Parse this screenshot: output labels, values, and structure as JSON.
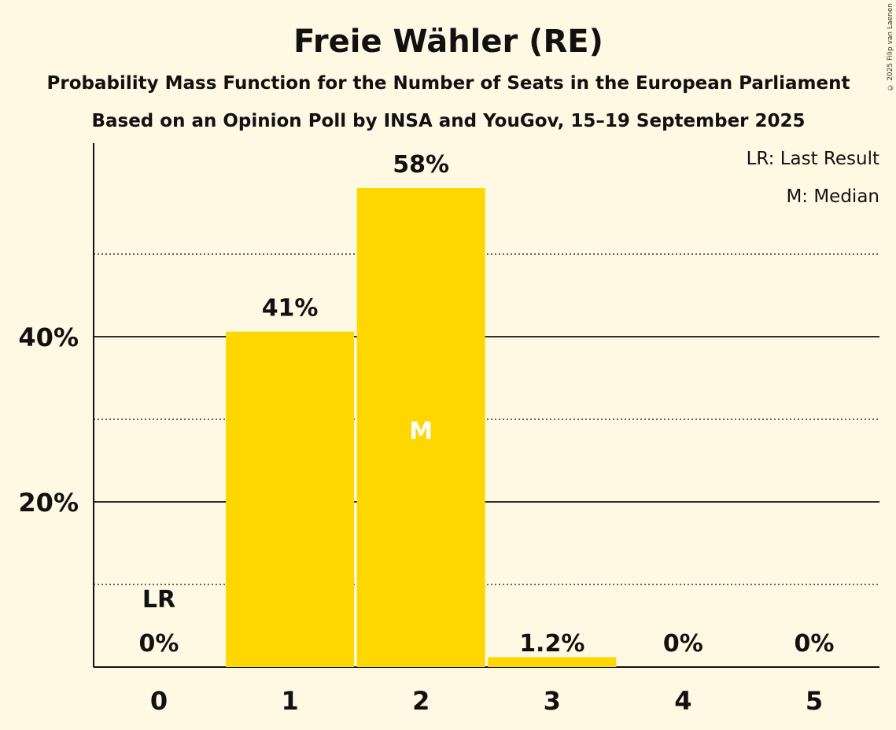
{
  "chart_data": {
    "type": "bar",
    "title": "Freie Wähler (RE)",
    "subtitle": "Probability Mass Function for the Number of Seats in the European Parliament",
    "subtitle2": "Based on an Opinion Poll by INSA and YouGov, 15–19 September 2025",
    "categories": [
      "0",
      "1",
      "2",
      "3",
      "4",
      "5"
    ],
    "values": [
      0,
      40.6,
      58,
      1.2,
      0,
      0
    ],
    "data_labels": [
      "0%",
      "41%",
      "58%",
      "1.2%",
      "0%",
      "0%"
    ],
    "ylim": [
      0,
      63
    ],
    "yticks": [
      {
        "value": 20,
        "label": "20%"
      },
      {
        "value": 40,
        "label": "40%"
      }
    ],
    "minor_gridlines": [
      10,
      30,
      50
    ],
    "last_result_index": 0,
    "last_result_marker": "LR",
    "median_index": 2,
    "median_marker": "M",
    "legend": [
      "LR: Last Result",
      "M: Median"
    ],
    "legend_placement": "top-right",
    "bar_color": "#FFD700",
    "xlabel": "",
    "ylabel": ""
  },
  "copyright": "© 2025 Filip van Laenen"
}
